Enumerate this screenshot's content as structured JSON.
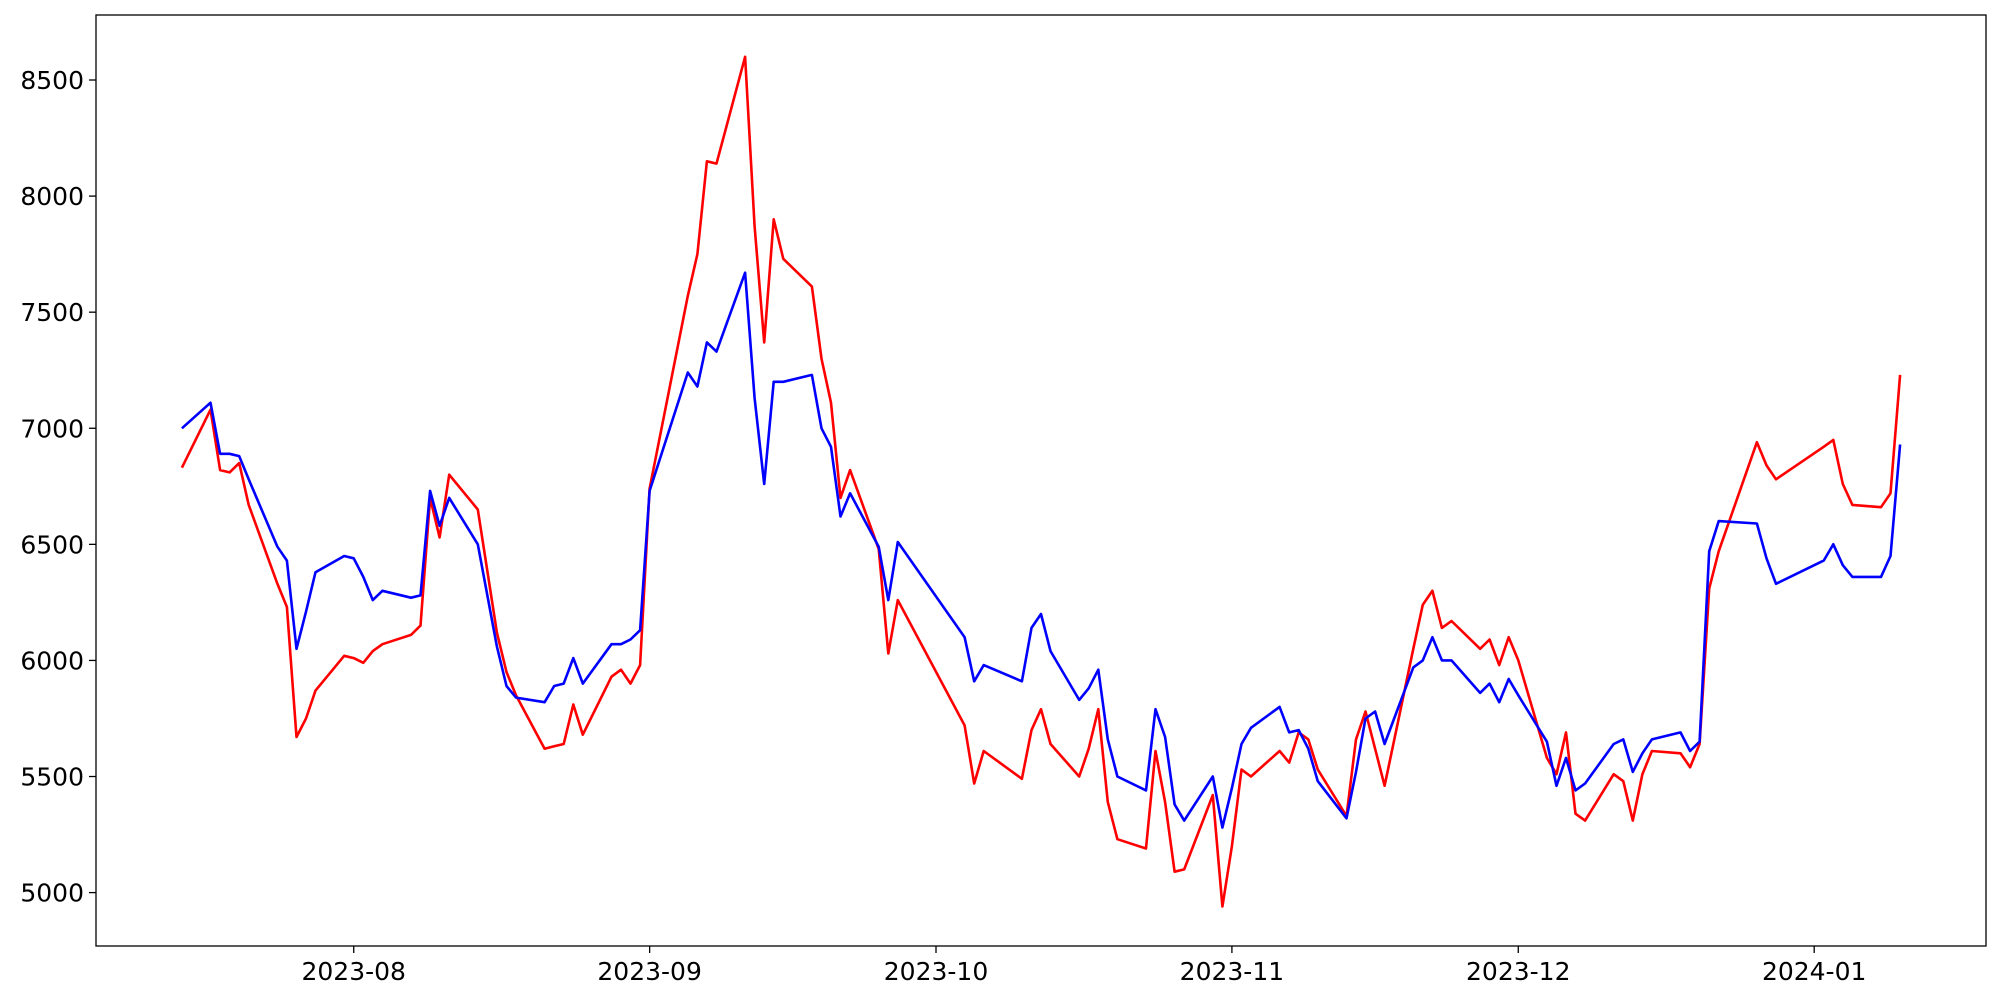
{
  "chart_data": {
    "type": "line",
    "x": [
      "2023-07-14",
      "2023-07-17",
      "2023-07-18",
      "2023-07-19",
      "2023-07-20",
      "2023-07-21",
      "2023-07-24",
      "2023-07-25",
      "2023-07-26",
      "2023-07-27",
      "2023-07-28",
      "2023-07-31",
      "2023-08-01",
      "2023-08-02",
      "2023-08-03",
      "2023-08-04",
      "2023-08-07",
      "2023-08-08",
      "2023-08-09",
      "2023-08-10",
      "2023-08-11",
      "2023-08-14",
      "2023-08-16",
      "2023-08-17",
      "2023-08-18",
      "2023-08-21",
      "2023-08-22",
      "2023-08-23",
      "2023-08-24",
      "2023-08-25",
      "2023-08-28",
      "2023-08-29",
      "2023-08-30",
      "2023-08-31",
      "2023-09-01",
      "2023-09-05",
      "2023-09-06",
      "2023-09-07",
      "2023-09-08",
      "2023-09-11",
      "2023-09-12",
      "2023-09-13",
      "2023-09-14",
      "2023-09-15",
      "2023-09-18",
      "2023-09-19",
      "2023-09-20",
      "2023-09-21",
      "2023-09-22",
      "2023-09-25",
      "2023-09-26",
      "2023-09-27",
      "2023-10-04",
      "2023-10-05",
      "2023-10-06",
      "2023-10-10",
      "2023-10-11",
      "2023-10-12",
      "2023-10-13",
      "2023-10-16",
      "2023-10-17",
      "2023-10-18",
      "2023-10-19",
      "2023-10-20",
      "2023-10-23",
      "2023-10-24",
      "2023-10-25",
      "2023-10-26",
      "2023-10-27",
      "2023-10-30",
      "2023-10-31",
      "2023-11-01",
      "2023-11-02",
      "2023-11-03",
      "2023-11-06",
      "2023-11-07",
      "2023-11-08",
      "2023-11-09",
      "2023-11-10",
      "2023-11-13",
      "2023-11-14",
      "2023-11-15",
      "2023-11-16",
      "2023-11-17",
      "2023-11-20",
      "2023-11-21",
      "2023-11-22",
      "2023-11-23",
      "2023-11-24",
      "2023-11-27",
      "2023-11-28",
      "2023-11-29",
      "2023-11-30",
      "2023-12-01",
      "2023-12-04",
      "2023-12-05",
      "2023-12-06",
      "2023-12-07",
      "2023-12-08",
      "2023-12-11",
      "2023-12-12",
      "2023-12-13",
      "2023-12-14",
      "2023-12-15",
      "2023-12-18",
      "2023-12-19",
      "2023-12-20",
      "2023-12-21",
      "2023-12-22",
      "2023-12-26",
      "2023-12-27",
      "2023-12-28",
      "2024-01-02",
      "2024-01-03",
      "2024-01-04",
      "2024-01-05",
      "2024-01-08",
      "2024-01-09",
      "2024-01-10"
    ],
    "series": [
      {
        "color": "#ff0000",
        "values": [
          6830,
          7080,
          6820,
          6810,
          6850,
          6670,
          6330,
          6230,
          5670,
          5750,
          5870,
          6020,
          6010,
          5990,
          6040,
          6070,
          6110,
          6150,
          6700,
          6530,
          6800,
          6650,
          6120,
          5950,
          5850,
          5620,
          5630,
          5640,
          5810,
          5680,
          5930,
          5960,
          5900,
          5980,
          6740,
          7570,
          7750,
          8150,
          8140,
          8600,
          7870,
          7370,
          7900,
          7730,
          7610,
          7300,
          7110,
          6700,
          6820,
          6480,
          6030,
          6260,
          5720,
          5470,
          5610,
          5490,
          5700,
          5790,
          5640,
          5500,
          5620,
          5790,
          5390,
          5230,
          5190,
          5610,
          5390,
          5090,
          5100,
          5420,
          4940,
          5200,
          5530,
          5500,
          5610,
          5560,
          5690,
          5660,
          5530,
          5330,
          5660,
          5780,
          5620,
          5460,
          6050,
          6240,
          6300,
          6140,
          6170,
          6050,
          6090,
          5980,
          6100,
          6000,
          5580,
          5510,
          5690,
          5340,
          5310,
          5510,
          5480,
          5310,
          5510,
          5610,
          5600,
          5540,
          5640,
          6310,
          6470,
          6940,
          6840,
          6780,
          6920,
          6950,
          6760,
          6670,
          6660,
          6720,
          7230
        ]
      },
      {
        "color": "#0000ff",
        "values": [
          7000,
          7110,
          6890,
          6890,
          6880,
          6780,
          6490,
          6430,
          6050,
          6210,
          6380,
          6450,
          6440,
          6360,
          6260,
          6300,
          6270,
          6280,
          6730,
          6580,
          6700,
          6500,
          6060,
          5890,
          5840,
          5820,
          5890,
          5900,
          6010,
          5900,
          6070,
          6070,
          6090,
          6130,
          6730,
          7240,
          7180,
          7370,
          7330,
          7670,
          7130,
          6760,
          7200,
          7200,
          7230,
          7000,
          6920,
          6620,
          6720,
          6490,
          6260,
          6510,
          6100,
          5910,
          5980,
          5910,
          6140,
          6200,
          6040,
          5830,
          5880,
          5960,
          5660,
          5500,
          5440,
          5790,
          5670,
          5380,
          5310,
          5500,
          5280,
          5450,
          5640,
          5710,
          5800,
          5690,
          5700,
          5620,
          5480,
          5320,
          5520,
          5750,
          5780,
          5640,
          5970,
          6000,
          6100,
          6000,
          6000,
          5860,
          5900,
          5820,
          5920,
          5850,
          5650,
          5460,
          5580,
          5440,
          5470,
          5640,
          5660,
          5520,
          5600,
          5660,
          5690,
          5610,
          5650,
          6470,
          6600,
          6590,
          6440,
          6330,
          6430,
          6500,
          6410,
          6360,
          6360,
          6450,
          6930
        ]
      }
    ],
    "xlim": [
      "2023-07-05",
      "2024-01-19"
    ],
    "xticks": [
      {
        "value": "2023-08-01",
        "label": "2023-08"
      },
      {
        "value": "2023-09-01",
        "label": "2023-09"
      },
      {
        "value": "2023-10-01",
        "label": "2023-10"
      },
      {
        "value": "2023-11-01",
        "label": "2023-11"
      },
      {
        "value": "2023-12-01",
        "label": "2023-12"
      },
      {
        "value": "2024-01-01",
        "label": "2024-01"
      }
    ],
    "ylim": [
      4770,
      8780
    ],
    "yticks": [
      5000,
      5500,
      6000,
      6500,
      7000,
      7500,
      8000,
      8500
    ],
    "grid": false
  }
}
